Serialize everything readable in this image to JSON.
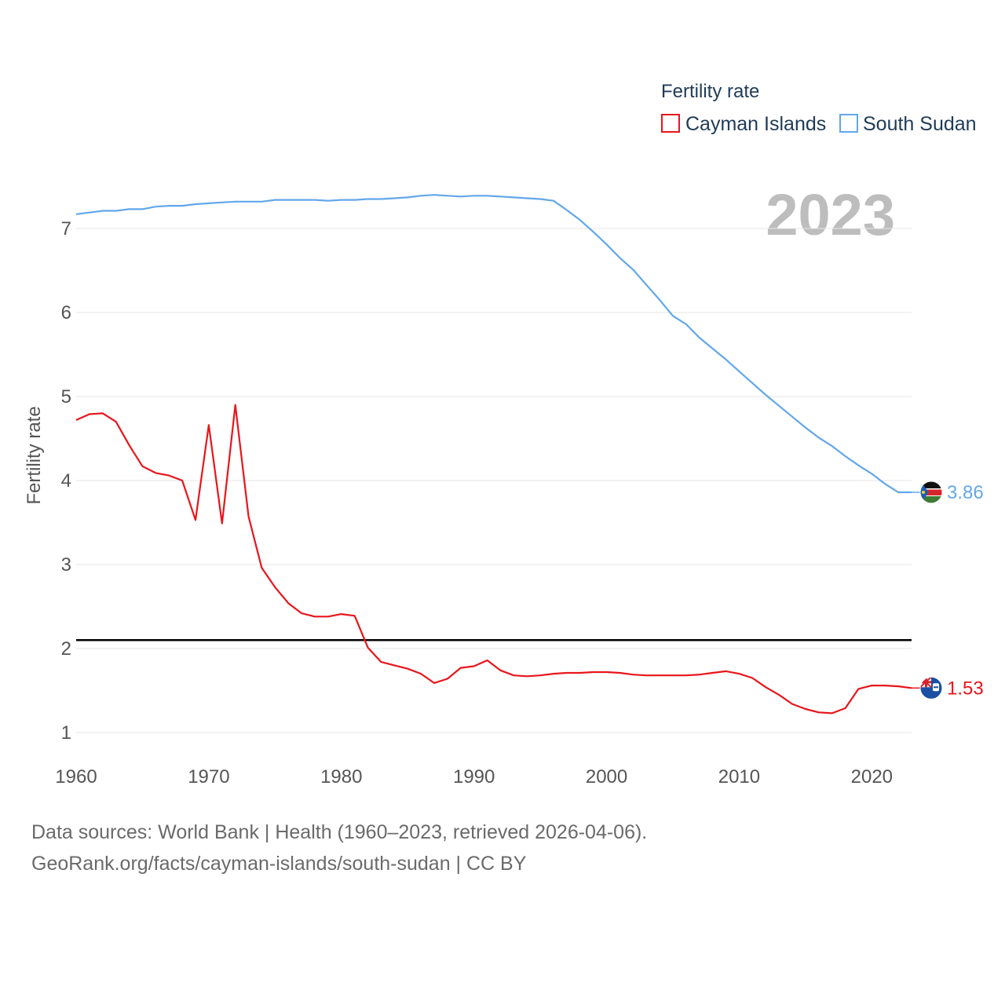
{
  "legend": {
    "title": "Fertility rate",
    "items": [
      {
        "label": "Cayman Islands",
        "color": "#e8151b"
      },
      {
        "label": "South Sudan",
        "color": "#62a7ea"
      }
    ]
  },
  "year_label": "2023",
  "footer": {
    "line1": "Data sources: World Bank | Health (1960–2023, retrieved 2026-04-06).",
    "line2": "GeoRank.org/facts/cayman-islands/south-sudan | CC BY"
  },
  "chart_data": {
    "type": "line",
    "title": "",
    "xlabel": "",
    "ylabel": "Fertility rate",
    "xlim": [
      1960,
      2023
    ],
    "ylim": [
      1,
      7
    ],
    "x_ticks": [
      "1960",
      "1970",
      "1980",
      "1990",
      "2000",
      "2010",
      "2020"
    ],
    "y_ticks": [
      "1",
      "2",
      "3",
      "4",
      "5",
      "6",
      "7"
    ],
    "reference_line": 2.1,
    "x": [
      1960,
      1961,
      1962,
      1963,
      1964,
      1965,
      1966,
      1967,
      1968,
      1969,
      1970,
      1971,
      1972,
      1973,
      1974,
      1975,
      1976,
      1977,
      1978,
      1979,
      1980,
      1981,
      1982,
      1983,
      1984,
      1985,
      1986,
      1987,
      1988,
      1989,
      1990,
      1991,
      1992,
      1993,
      1994,
      1995,
      1996,
      1997,
      1998,
      1999,
      2000,
      2001,
      2002,
      2003,
      2004,
      2005,
      2006,
      2007,
      2008,
      2009,
      2010,
      2011,
      2012,
      2013,
      2014,
      2015,
      2016,
      2017,
      2018,
      2019,
      2020,
      2021,
      2022,
      2023
    ],
    "series": [
      {
        "name": "Cayman Islands",
        "color": "#e8151b",
        "end_label": "1.53",
        "values": [
          4.72,
          4.79,
          4.8,
          4.7,
          4.42,
          4.17,
          4.09,
          4.06,
          4.0,
          3.53,
          4.66,
          3.49,
          4.9,
          3.57,
          2.96,
          2.73,
          2.54,
          2.42,
          2.38,
          2.38,
          2.41,
          2.39,
          2.01,
          1.84,
          1.8,
          1.76,
          1.7,
          1.59,
          1.64,
          1.77,
          1.79,
          1.86,
          1.74,
          1.68,
          1.67,
          1.68,
          1.7,
          1.71,
          1.71,
          1.72,
          1.72,
          1.71,
          1.69,
          1.68,
          1.68,
          1.68,
          1.68,
          1.69,
          1.71,
          1.73,
          1.7,
          1.65,
          1.54,
          1.45,
          1.34,
          1.28,
          1.24,
          1.23,
          1.29,
          1.52,
          1.56,
          1.56,
          1.55,
          1.53
        ]
      },
      {
        "name": "South Sudan",
        "color": "#62a7ea",
        "end_label": "3.86",
        "values": [
          7.17,
          7.19,
          7.21,
          7.21,
          7.23,
          7.23,
          7.26,
          7.27,
          7.27,
          7.29,
          7.3,
          7.31,
          7.32,
          7.32,
          7.32,
          7.34,
          7.34,
          7.34,
          7.34,
          7.33,
          7.34,
          7.34,
          7.35,
          7.35,
          7.36,
          7.37,
          7.39,
          7.4,
          7.39,
          7.38,
          7.39,
          7.39,
          7.38,
          7.37,
          7.36,
          7.35,
          7.33,
          7.22,
          7.1,
          6.96,
          6.81,
          6.65,
          6.51,
          6.33,
          6.15,
          5.96,
          5.86,
          5.7,
          5.57,
          5.44,
          5.3,
          5.16,
          5.02,
          4.89,
          4.76,
          4.63,
          4.51,
          4.41,
          4.29,
          4.18,
          4.08,
          3.96,
          3.86,
          3.86
        ]
      }
    ]
  }
}
